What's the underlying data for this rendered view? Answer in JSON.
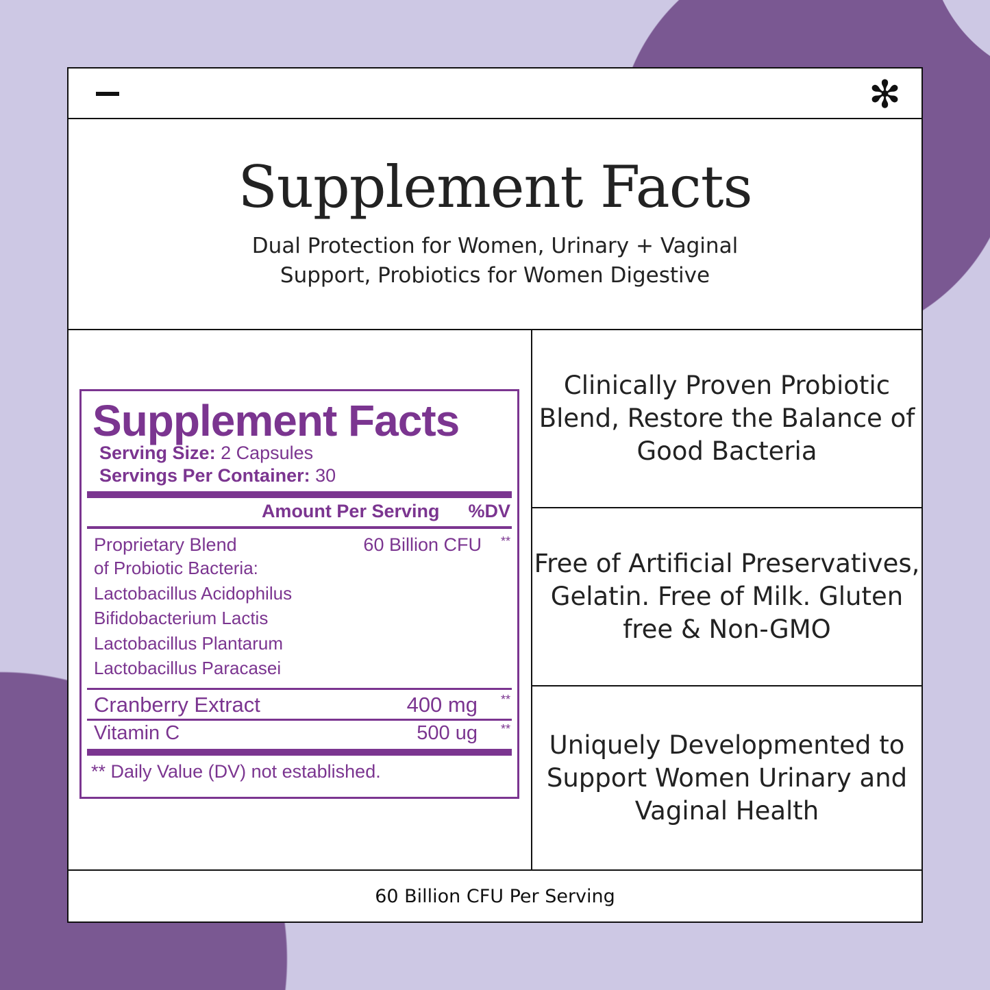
{
  "colors": {
    "background": "#cdc8e4",
    "accent": "#7a5892",
    "label": "#7b3590"
  },
  "icons": {
    "left": "minus-icon",
    "right": "asterisk-icon"
  },
  "hero": {
    "title": "Supplement Facts",
    "subtitle": "Dual Protection for Women, Urinary + Vaginal Support, Probiotics for Women Digestive"
  },
  "label": {
    "title": "Supplement Facts",
    "serving_size_label": "Serving Size:",
    "serving_size": "2 Capsules",
    "servings_label": "Servings Per Container:",
    "servings": "30",
    "col_amount": "Amount Per Serving",
    "col_dv": "%DV",
    "blend": {
      "name": "Proprietary Blend",
      "amount": "60 Billion CFU",
      "dv": "**",
      "lines": [
        "of Probiotic Bacteria:",
        "Lactobacillus Acidophilus",
        "Bifidobacterium Lactis",
        "Lactobacillus Plantarum",
        "Lactobacillus Paracasei"
      ]
    },
    "rows": [
      {
        "name": "Cranberry Extract",
        "amount": "400 mg",
        "dv": "**"
      },
      {
        "name": "Vitamin C",
        "amount": "500 ug",
        "dv": "**"
      }
    ],
    "footnote": "** Daily Value (DV) not established."
  },
  "features": [
    "Clinically Proven Probiotic Blend, Restore the Balance of Good Bacteria",
    "Free of Artificial Preservatives, Gelatin. Free of Milk. Gluten free & Non-GMO",
    "Uniquely Developmented to Support Women Urinary and Vaginal Health"
  ],
  "footer": "60 Billion CFU Per Serving"
}
